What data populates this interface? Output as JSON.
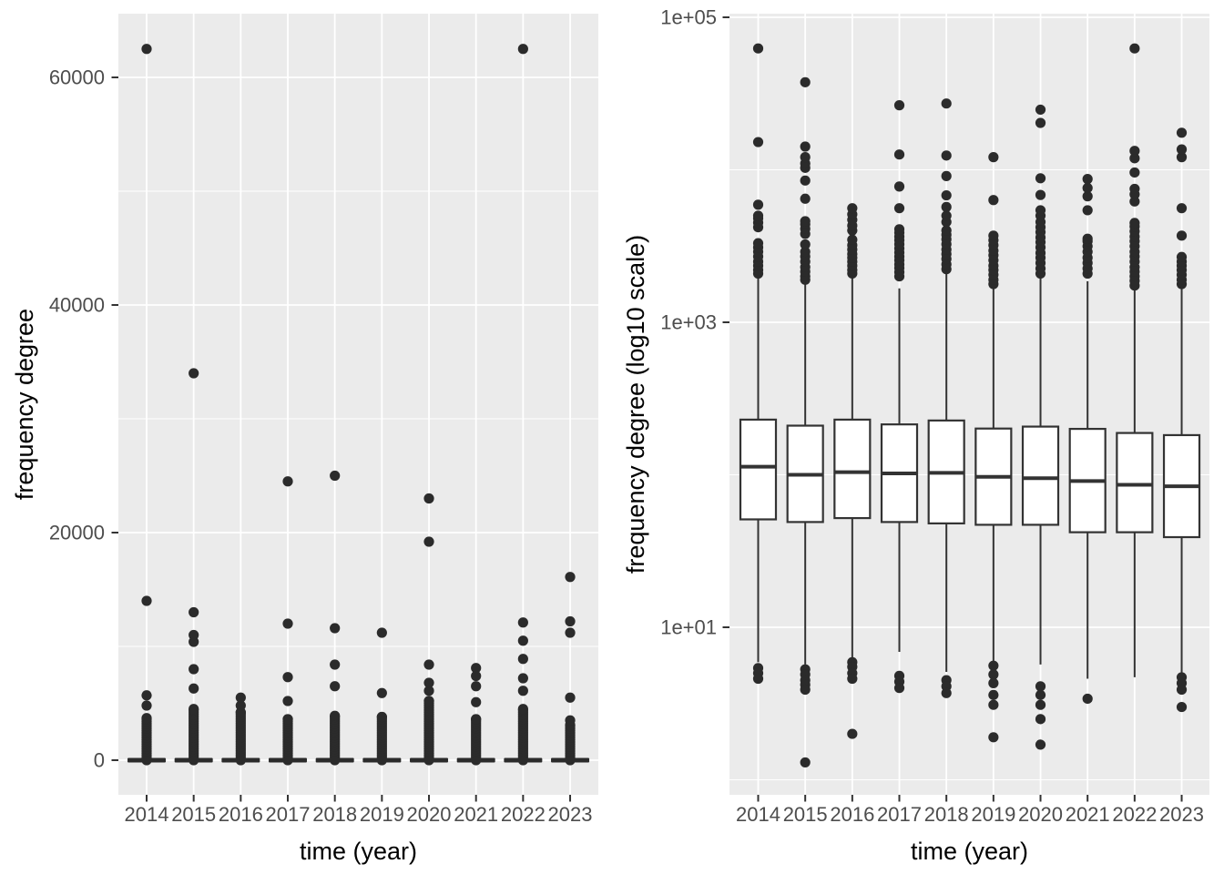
{
  "style": {
    "background": "#FFFFFF",
    "panel_bg": "#EBEBEB",
    "grid_color": "#FFFFFF",
    "point_color": "#2B2B2B",
    "box_stroke": "#333333",
    "box_fill": "#FFFFFF",
    "tick_mark_color": "#333333",
    "tick_label_color": "#4D4D4D",
    "axis_title_color": "#000000"
  },
  "chart_data": [
    {
      "type": "boxplot",
      "scale": "linear",
      "title": "",
      "xlabel": "time (year)",
      "ylabel": "frequency degree",
      "categories": [
        "2014",
        "2015",
        "2016",
        "2017",
        "2018",
        "2019",
        "2020",
        "2021",
        "2022",
        "2023"
      ],
      "ytick_values": [
        0,
        20000,
        40000,
        60000
      ],
      "ytick_labels": [
        "0",
        "20000",
        "40000",
        "60000"
      ],
      "ytick_minor_values": [
        10000,
        30000,
        50000
      ],
      "ylim": [
        -3040,
        65600
      ],
      "grid": true,
      "legend": false,
      "note": "boxes collapse to a thick dash at 0; stacked dots are outliers",
      "series": [
        {
          "year": "2014",
          "box_median": 0,
          "dense_stack_max": 3700,
          "outliers": [
            4800,
            5700,
            14000,
            62500
          ]
        },
        {
          "year": "2015",
          "box_median": 0,
          "dense_stack_max": 4500,
          "outliers": [
            6300,
            8000,
            10400,
            11000,
            13000,
            34000
          ]
        },
        {
          "year": "2016",
          "box_median": 0,
          "dense_stack_max": 4200,
          "outliers": [
            4800,
            5500
          ]
        },
        {
          "year": "2017",
          "box_median": 0,
          "dense_stack_max": 3600,
          "outliers": [
            5200,
            7300,
            12000,
            24500
          ]
        },
        {
          "year": "2018",
          "box_median": 0,
          "dense_stack_max": 3900,
          "outliers": [
            6500,
            8400,
            11600,
            25000
          ]
        },
        {
          "year": "2019",
          "box_median": 0,
          "dense_stack_max": 3800,
          "outliers": [
            5900,
            11200
          ]
        },
        {
          "year": "2020",
          "box_median": 0,
          "dense_stack_max": 5200,
          "outliers": [
            6100,
            6800,
            8400,
            19200,
            23000
          ]
        },
        {
          "year": "2021",
          "box_median": 0,
          "dense_stack_max": 3600,
          "outliers": [
            5100,
            6500,
            7400,
            8100
          ]
        },
        {
          "year": "2022",
          "box_median": 0,
          "dense_stack_max": 4500,
          "outliers": [
            6100,
            7200,
            8900,
            10500,
            12100,
            62500
          ]
        },
        {
          "year": "2023",
          "box_median": 0,
          "dense_stack_max": 3100,
          "outliers": [
            3500,
            5500,
            11200,
            12200,
            16100
          ]
        }
      ]
    },
    {
      "type": "boxplot",
      "scale": "log10",
      "title": "",
      "xlabel": "time (year)",
      "ylabel": "frequency degree (log10 scale)",
      "categories": [
        "2014",
        "2015",
        "2016",
        "2017",
        "2018",
        "2019",
        "2020",
        "2021",
        "2022",
        "2023"
      ],
      "ytick_values": [
        10,
        1000,
        100000
      ],
      "ytick_labels": [
        "1e+01",
        "1e+03",
        "1e+05"
      ],
      "ytick_minor_values": [
        1,
        100,
        10000
      ],
      "ylim_log10": [
        -0.098,
        5.024
      ],
      "grid": true,
      "legend": false,
      "series": [
        {
          "year": "2014",
          "q1": 51,
          "median": 113,
          "q3": 230,
          "whisker_low": 5.9,
          "whisker_high": 2000,
          "outliers_high": [
            2085,
            2200,
            2350,
            2500,
            2700,
            2900,
            3100,
            3300,
            4200,
            4500,
            4800,
            5000,
            5900,
            15200,
            62500
          ],
          "outliers_low": [
            5.4,
            5.0,
            4.6
          ]
        },
        {
          "year": "2015",
          "q1": 49,
          "median": 100,
          "q3": 210,
          "whisker_low": 5.7,
          "whisker_high": 1880,
          "outliers_high": [
            1900,
            2000,
            2150,
            2300,
            2500,
            2700,
            2900,
            3240,
            3800,
            4100,
            4400,
            4600,
            6460,
            8500,
            10300,
            11000,
            12100,
            14200,
            37500
          ],
          "outliers_low": [
            5.3,
            4.9,
            4.5,
            4.2,
            3.9,
            1.3
          ]
        },
        {
          "year": "2016",
          "q1": 52,
          "median": 104,
          "q3": 230,
          "whisker_low": 6.0,
          "whisker_high": 2090,
          "outliers_high": [
            2090,
            2200,
            2350,
            2500,
            2650,
            2800,
            3000,
            3200,
            3480,
            4000,
            4300,
            4700,
            5100,
            5600
          ],
          "outliers_low": [
            5.9,
            5.5,
            5.0,
            4.6,
            2.0
          ]
        },
        {
          "year": "2017",
          "q1": 49,
          "median": 102,
          "q3": 214,
          "whisker_low": 6.9,
          "whisker_high": 1670,
          "outliers_high": [
            2000,
            2130,
            2270,
            2400,
            2550,
            2700,
            2870,
            3050,
            3250,
            3450,
            3650,
            3870,
            4070,
            5600,
            7770,
            12600,
            26500
          ],
          "outliers_low": [
            4.8,
            4.4,
            4.0
          ]
        },
        {
          "year": "2018",
          "q1": 48,
          "median": 103,
          "q3": 227,
          "whisker_low": 5.1,
          "whisker_high": 2230,
          "outliers_high": [
            2230,
            2400,
            2600,
            2800,
            3000,
            3250,
            3500,
            3750,
            4000,
            4550,
            5000,
            5700,
            6800,
            9100,
            12400,
            27200
          ],
          "outliers_low": [
            4.5,
            4.1,
            3.7
          ]
        },
        {
          "year": "2019",
          "q1": 47,
          "median": 97,
          "q3": 201,
          "whisker_low": 5.8,
          "whisker_high": 1780,
          "outliers_high": [
            1780,
            1900,
            2050,
            2200,
            2350,
            2550,
            2750,
            2950,
            3200,
            3450,
            3700,
            6330,
            12100
          ],
          "outliers_low": [
            5.6,
            4.9,
            4.3,
            3.6,
            3.1,
            1.9
          ]
        },
        {
          "year": "2020",
          "q1": 47,
          "median": 95,
          "q3": 207,
          "whisker_low": 5.7,
          "whisker_high": 2000,
          "outliers_high": [
            2085,
            2250,
            2450,
            2650,
            2850,
            3100,
            3350,
            3600,
            3900,
            4200,
            4550,
            5000,
            5430,
            6840,
            8800,
            20300,
            24800
          ],
          "outliers_low": [
            4.1,
            3.6,
            3.1,
            2.5,
            1.7
          ]
        },
        {
          "year": "2021",
          "q1": 42,
          "median": 91,
          "q3": 200,
          "whisker_low": 4.6,
          "whisker_high": 1860,
          "outliers_high": [
            2085,
            2250,
            2450,
            2650,
            2900,
            3150,
            3400,
            3530,
            5430,
            6700,
            7600,
            8700
          ],
          "outliers_low": [
            3.4
          ]
        },
        {
          "year": "2022",
          "q1": 42,
          "median": 86,
          "q3": 188,
          "whisker_low": 4.7,
          "whisker_high": 1700,
          "outliers_high": [
            1740,
            1870,
            2000,
            2150,
            2300,
            2500,
            2700,
            2900,
            3150,
            3400,
            3650,
            3950,
            4250,
            4480,
            6200,
            6900,
            7500,
            9600,
            11900,
            13300,
            62500
          ],
          "outliers_low": []
        },
        {
          "year": "2023",
          "q1": 39,
          "median": 84,
          "q3": 182,
          "whisker_low": 4.7,
          "whisker_high": 1740,
          "outliers_high": [
            1780,
            1900,
            2050,
            2200,
            2350,
            2500,
            2680,
            3700,
            5600,
            12100,
            13600,
            17500
          ],
          "outliers_low": [
            4.7,
            4.3,
            3.9,
            3.0
          ]
        }
      ]
    }
  ]
}
